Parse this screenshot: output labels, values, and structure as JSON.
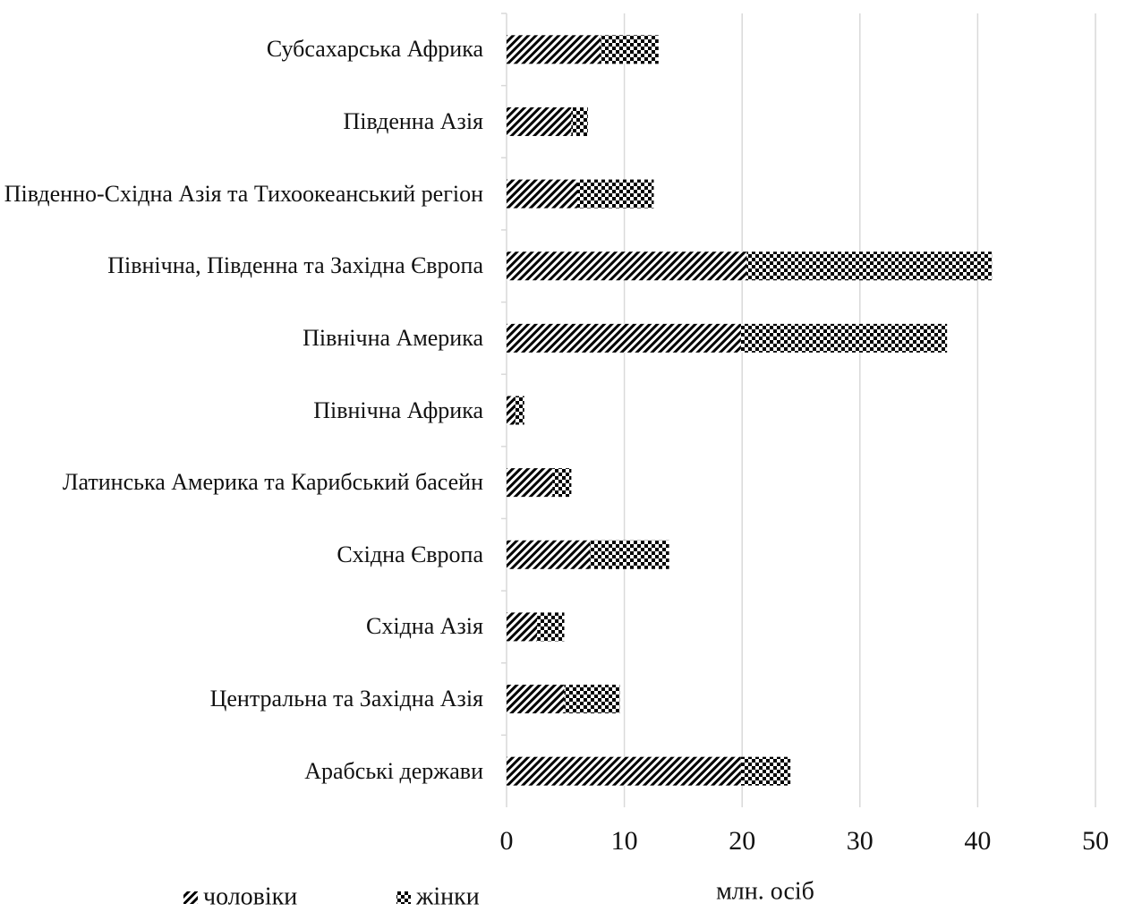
{
  "chart_data": {
    "type": "barh_stacked",
    "categories": [
      "Субсахарська Африка",
      "Південна Азія",
      "Південно-Східна Азія та Тихоокеанський регіон",
      "Північна, Південна та Західна Європа",
      "Північна Америка",
      "Північна Африка",
      "Латинська Америка та Карибський басейн",
      "Східна Європа",
      "Східна Азія",
      "Центральна та Західна Азія",
      "Арабські держави"
    ],
    "series": [
      {
        "name": "чоловіки",
        "color": "#000000",
        "values": [
          8.0,
          5.5,
          6.0,
          20.4,
          19.9,
          0.7,
          3.9,
          7.1,
          2.6,
          4.9,
          19.9
        ]
      },
      {
        "name": "жінки",
        "color": "#000000",
        "values": [
          4.9,
          1.4,
          6.5,
          20.8,
          17.5,
          0.8,
          1.6,
          6.7,
          2.3,
          4.7,
          4.2
        ]
      }
    ],
    "xlabel": "млн. осіб",
    "xlim": [
      0,
      50
    ],
    "xticks": [
      0,
      10,
      20,
      30,
      40,
      50
    ],
    "grid": true
  }
}
